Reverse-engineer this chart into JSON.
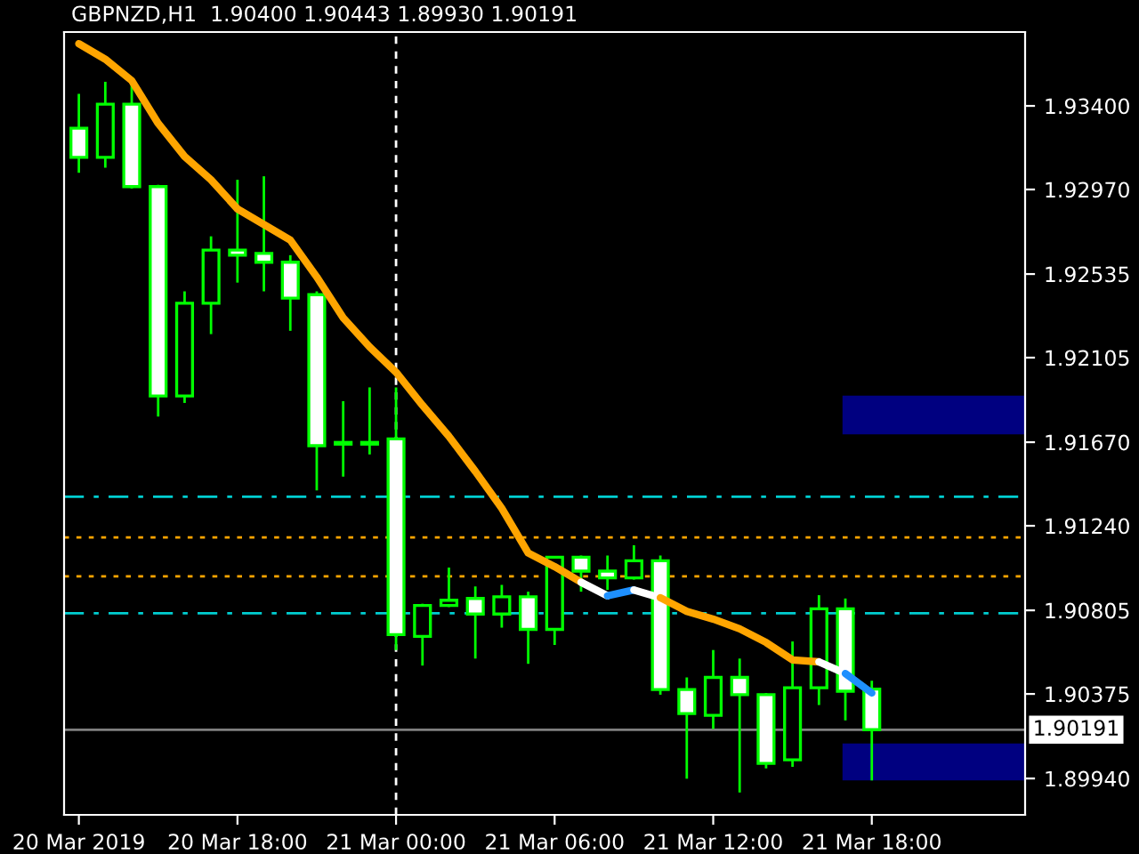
{
  "chart_data": {
    "type": "candlestick",
    "title": "GBPNZD,H1  1.90400 1.90443 1.89930 1.90191",
    "categories": [
      "20 Mar 2019",
      null,
      null,
      null,
      null,
      null,
      "20 Mar 18:00",
      null,
      null,
      null,
      null,
      null,
      "21 Mar 00:00",
      null,
      null,
      null,
      null,
      null,
      "21 Mar 06:00",
      null,
      null,
      null,
      null,
      null,
      "21 Mar 12:00",
      null,
      null,
      null,
      null,
      null,
      "21 Mar 18:00",
      null,
      null,
      null,
      null,
      null
    ],
    "ohlc": [
      [
        1.93285,
        1.93462,
        1.93056,
        1.93135
      ],
      [
        1.93135,
        1.93524,
        1.93082,
        1.93409
      ],
      [
        1.93409,
        1.93515,
        1.92975,
        1.92985
      ],
      [
        1.92985,
        1.92994,
        1.91802,
        1.91908
      ],
      [
        1.91908,
        1.92446,
        1.91872,
        1.92385
      ],
      [
        1.92385,
        1.92729,
        1.92226,
        1.92658
      ],
      [
        1.92658,
        1.9302,
        1.92491,
        1.92632
      ],
      [
        1.92641,
        1.93038,
        1.92446,
        1.92596
      ],
      [
        1.92596,
        1.92632,
        1.92243,
        1.92411
      ],
      [
        1.92429,
        1.92446,
        1.91422,
        1.91652
      ],
      [
        1.91669,
        1.91881,
        1.91493,
        1.9166
      ],
      [
        1.9166,
        1.91952,
        1.91607,
        1.91669
      ],
      [
        1.91687,
        1.91952,
        1.90601,
        1.9068
      ],
      [
        1.90671,
        1.90839,
        1.90521,
        1.9083
      ],
      [
        1.9083,
        1.91025,
        1.90822,
        1.90857
      ],
      [
        1.90866,
        1.90928,
        1.90557,
        1.90786
      ],
      [
        1.90786,
        1.90936,
        1.90716,
        1.90875
      ],
      [
        1.90875,
        1.90901,
        1.9053,
        1.90707
      ],
      [
        1.90707,
        1.91078,
        1.90627,
        1.91078
      ],
      [
        1.91078,
        1.91087,
        1.90901,
        1.91007
      ],
      [
        1.91007,
        1.91087,
        1.9091,
        1.90972
      ],
      [
        1.90972,
        1.9114,
        1.90963,
        1.9106
      ],
      [
        1.9106,
        1.91087,
        1.90371,
        1.90398
      ],
      [
        1.90398,
        1.9046,
        1.89939,
        1.90274
      ],
      [
        1.90265,
        1.90601,
        1.90195,
        1.9046
      ],
      [
        1.9046,
        1.90557,
        1.89868,
        1.90371
      ],
      [
        1.90371,
        1.9038,
        1.89992,
        1.90018
      ],
      [
        1.90036,
        1.90645,
        1.9,
        1.90407
      ],
      [
        1.90407,
        1.90883,
        1.90318,
        1.90813
      ],
      [
        1.90813,
        1.90866,
        1.90239,
        1.90389
      ],
      [
        1.904,
        1.90443,
        1.8993,
        1.90191
      ],
      null,
      null,
      null,
      null,
      null
    ],
    "colors": [
      "#00ff00",
      "#00ff00",
      "#00ff00",
      "#00ff00",
      "#00ff00",
      "#00ff00",
      "#00ff00",
      "#00ff00",
      "#00ff00",
      "#00ff00",
      "#00ff00",
      "#00ff00",
      "#00ff00",
      "#00ff00",
      "#00ff00",
      "#00ff00",
      "#00ff00",
      "#00ff00",
      "#00ff00",
      "#00ff00",
      "#00ff00",
      "#00ff00",
      "#00ff00",
      "#00ff00",
      "#00ff00",
      "#00ff00",
      "#00ff00",
      "#00ff00",
      "#00ff00",
      "#00ff00",
      "#00ff00",
      null,
      null,
      null,
      null,
      null
    ],
    "series": [
      {
        "type": "line",
        "color": "#ffa500",
        "values": [
          1.9372,
          1.9364,
          1.9353,
          1.9331,
          1.9314,
          1.9302,
          1.9287,
          1.9279,
          1.9271,
          1.9252,
          1.9231,
          1.9216,
          1.9203,
          1.9186,
          1.917,
          1.9152,
          1.9133,
          1.911,
          1.9103,
          1.9095,
          null,
          null,
          null,
          null,
          null,
          null,
          null,
          null,
          null,
          null,
          null,
          null,
          null,
          null,
          null,
          null
        ]
      },
      {
        "type": "line",
        "color": "#ffffff",
        "values": [
          null,
          null,
          null,
          null,
          null,
          null,
          null,
          null,
          null,
          null,
          null,
          null,
          null,
          null,
          null,
          null,
          null,
          null,
          null,
          1.9095,
          1.9088,
          null,
          null,
          null,
          null,
          null,
          null,
          null,
          null,
          null,
          null,
          null,
          null,
          null,
          null,
          null
        ]
      },
      {
        "type": "line",
        "color": "#1e90ff",
        "values": [
          null,
          null,
          null,
          null,
          null,
          null,
          null,
          null,
          null,
          null,
          null,
          null,
          null,
          null,
          null,
          null,
          null,
          null,
          null,
          null,
          1.9088,
          1.9091,
          null,
          null,
          null,
          null,
          null,
          null,
          null,
          null,
          null,
          null,
          null,
          null,
          null,
          null
        ]
      },
      {
        "type": "line",
        "color": "#ffffff",
        "values": [
          null,
          null,
          null,
          null,
          null,
          null,
          null,
          null,
          null,
          null,
          null,
          null,
          null,
          null,
          null,
          null,
          null,
          null,
          null,
          null,
          null,
          1.9091,
          1.9087,
          null,
          null,
          null,
          null,
          null,
          null,
          null,
          null,
          null,
          null,
          null,
          null,
          null
        ]
      },
      {
        "type": "line",
        "color": "#ffa500",
        "values": [
          null,
          null,
          null,
          null,
          null,
          null,
          null,
          null,
          null,
          null,
          null,
          null,
          null,
          null,
          null,
          null,
          null,
          null,
          null,
          null,
          null,
          null,
          1.9087,
          1.908,
          1.9076,
          1.9071,
          1.9064,
          1.9055,
          1.9054,
          null,
          null,
          null,
          null,
          null,
          null,
          null
        ]
      },
      {
        "type": "line",
        "color": "#ffffff",
        "values": [
          null,
          null,
          null,
          null,
          null,
          null,
          null,
          null,
          null,
          null,
          null,
          null,
          null,
          null,
          null,
          null,
          null,
          null,
          null,
          null,
          null,
          null,
          null,
          null,
          null,
          null,
          null,
          null,
          1.9054,
          1.9048,
          null,
          null,
          null,
          null,
          null,
          null
        ]
      },
      {
        "type": "line",
        "color": "#1e90ff",
        "values": [
          null,
          null,
          null,
          null,
          null,
          null,
          null,
          null,
          null,
          null,
          null,
          null,
          null,
          null,
          null,
          null,
          null,
          null,
          null,
          null,
          null,
          null,
          null,
          null,
          null,
          null,
          null,
          null,
          null,
          1.9048,
          1.9038,
          null,
          null,
          null,
          null,
          null
        ]
      }
    ],
    "ylim": [
      1.89753,
      1.9378
    ],
    "yticks": [
      {
        "value": 1.934,
        "label": "1.93400"
      },
      {
        "value": 1.9297,
        "label": "1.92970"
      },
      {
        "value": 1.92535,
        "label": "1.92535"
      },
      {
        "value": 1.92105,
        "label": "1.92105"
      },
      {
        "value": 1.9167,
        "label": "1.91670"
      },
      {
        "value": 1.9124,
        "label": "1.91240"
      },
      {
        "value": 1.90805,
        "label": "1.90805"
      },
      {
        "value": 1.90375,
        "label": "1.90375"
      },
      {
        "value": 1.8994,
        "label": "1.89940"
      }
    ],
    "ref_lines": [
      {
        "axis": "y",
        "value": 1.9139,
        "color": "#00ced1",
        "line_style": "dashdot"
      },
      {
        "axis": "y",
        "value": 1.9079,
        "color": "#00ced1",
        "line_style": "dashdot"
      },
      {
        "axis": "y",
        "value": 1.9118,
        "color": "#ffa500",
        "line_style": "dotted"
      },
      {
        "axis": "y",
        "value": 1.9098,
        "color": "#ffa500",
        "line_style": "dotted"
      },
      {
        "axis": "y",
        "value": 1.90191,
        "color": "#808080",
        "line_style": "solid",
        "label": "1.90191"
      },
      {
        "axis": "x",
        "value": "21 Mar 00:00",
        "color": "#ffffff",
        "line_style": "dashed"
      }
    ],
    "bands": [
      {
        "axis": "y",
        "from": 1.9171,
        "to": 1.9191,
        "color": "#000080"
      },
      {
        "axis": "y",
        "from": 1.8993,
        "to": 1.9012,
        "color": "#000080"
      }
    ],
    "grid": false,
    "legend": false
  }
}
